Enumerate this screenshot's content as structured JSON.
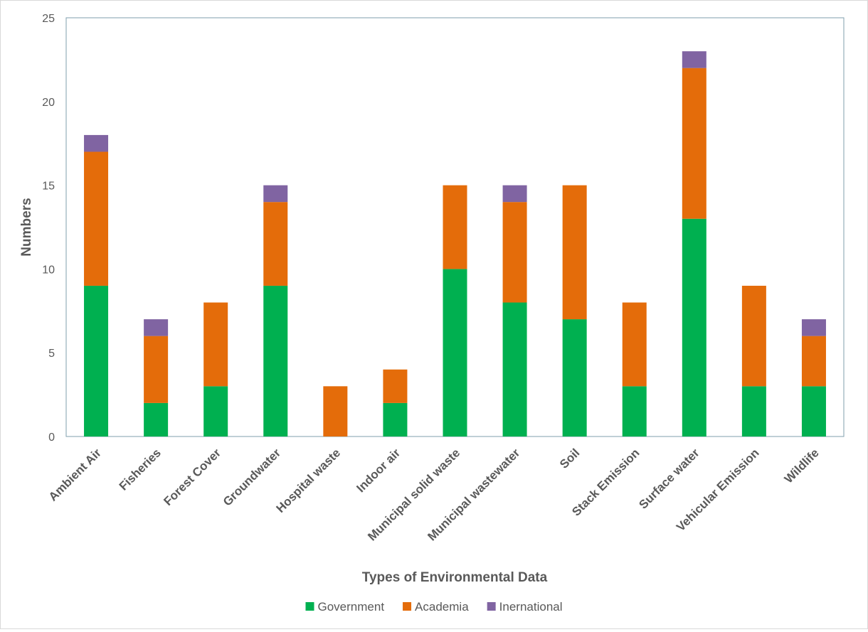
{
  "chart_data": {
    "type": "bar",
    "stacked": true,
    "xlabel": "Types of Environmental Data",
    "ylabel": "Numbers",
    "ylim": [
      0,
      25
    ],
    "yticks": [
      0,
      5,
      10,
      15,
      20,
      25
    ],
    "grid": false,
    "legend_position": "bottom",
    "categories": [
      "Ambient Air",
      "Fisheries",
      "Forest Cover",
      "Groundwater",
      "Hospital waste",
      "Indoor air",
      "Municipal solid waste",
      "Municipal wastewater",
      "Soil",
      "Stack Emission",
      "Surface water",
      "Vehicular Emission",
      "Wildlife"
    ],
    "series": [
      {
        "name": "Government",
        "color": "#00b050",
        "values": [
          9,
          2,
          3,
          9,
          0,
          2,
          10,
          8,
          7,
          3,
          13,
          3,
          3
        ]
      },
      {
        "name": "Academia",
        "color": "#e46c0a",
        "values": [
          8,
          4,
          5,
          5,
          3,
          2,
          5,
          6,
          8,
          5,
          9,
          6,
          3
        ]
      },
      {
        "name": "Inernational",
        "color": "#8064a2",
        "values": [
          1,
          1,
          0,
          1,
          0,
          0,
          0,
          1,
          0,
          0,
          1,
          0,
          1
        ]
      }
    ]
  }
}
